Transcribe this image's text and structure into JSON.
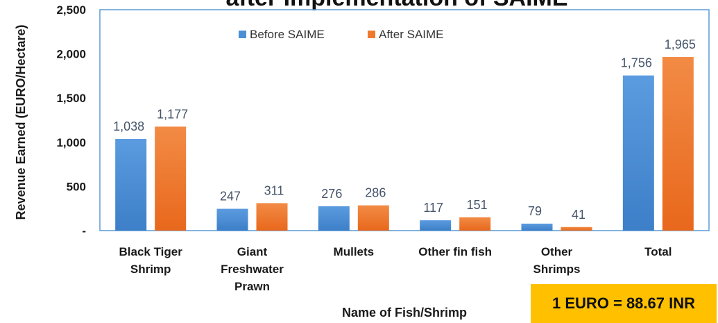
{
  "chart_data": {
    "type": "bar",
    "title": "after Implementation of SAIME",
    "xlabel": "Name of Fish/Shrimp",
    "ylabel": "Revenue Earned (EURO/Hectare)",
    "categories": [
      [
        "Black Tiger",
        "Shrimp"
      ],
      [
        "Giant",
        "Freshwater",
        "Prawn"
      ],
      [
        "Mullets"
      ],
      [
        "Other fin fish"
      ],
      [
        "Other",
        "Shrimps"
      ],
      [
        "Total"
      ]
    ],
    "series": [
      {
        "name": "Before SAIME",
        "color": "#4a8fd6",
        "values": [
          1038,
          247,
          276,
          117,
          79,
          1756
        ],
        "labels": [
          "1,038",
          "247",
          "276",
          "117",
          "79",
          "1,756"
        ]
      },
      {
        "name": "After SAIME",
        "color": "#ef7a2d",
        "values": [
          1177,
          311,
          286,
          151,
          41,
          1965
        ],
        "labels": [
          "1,177",
          "311",
          "286",
          "151",
          "41",
          "1,965"
        ]
      }
    ],
    "ylim": [
      0,
      2500
    ],
    "yticks": [
      {
        "value": 0,
        "label": "-"
      },
      {
        "value": 500,
        "label": "500"
      },
      {
        "value": 1000,
        "label": "1,000"
      },
      {
        "value": 1500,
        "label": "1,500"
      },
      {
        "value": 2000,
        "label": "2,000"
      },
      {
        "value": 2500,
        "label": "2,500"
      }
    ],
    "legend_position": "top-center",
    "grid": false,
    "note": "1 EURO = 88.67 INR"
  }
}
